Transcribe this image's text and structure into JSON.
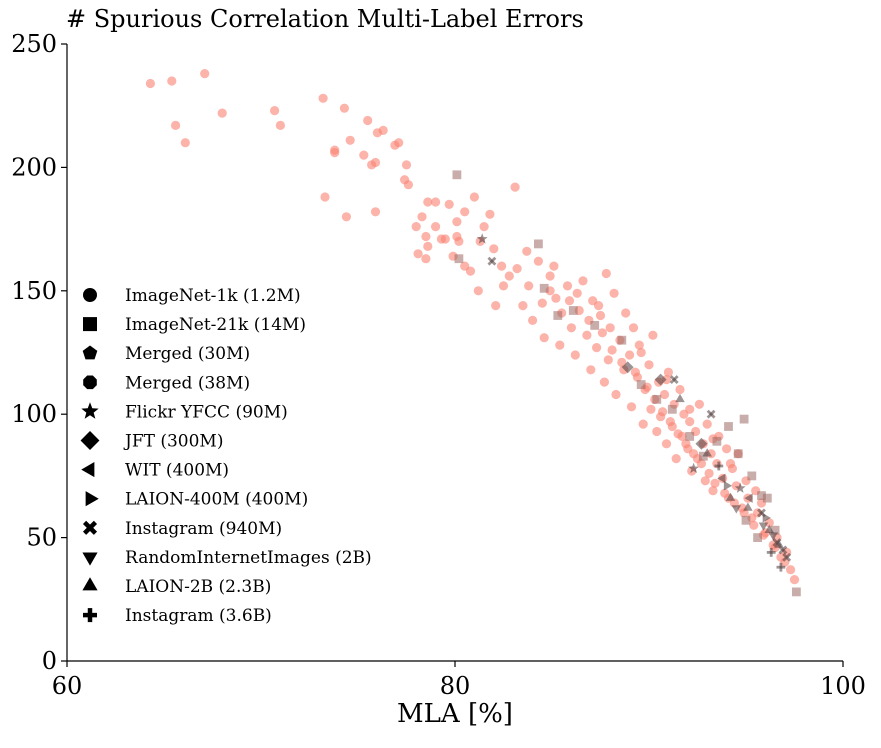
{
  "chart_data": {
    "type": "scatter",
    "title": "# Spurious Correlation Multi-Label Errors",
    "xlabel": "MLA [%]",
    "ylabel": "",
    "xlim": [
      60,
      100
    ],
    "ylim": [
      0,
      250
    ],
    "xticks": [
      "60",
      "80",
      "100"
    ],
    "yticks": [
      "0",
      "50",
      "100",
      "150",
      "200",
      "250"
    ],
    "grid": false,
    "legend_position": "left",
    "colors": {
      "primary": "#fa8072",
      "secondary": "#4d3b3b",
      "legend_marker": "#000000"
    },
    "legend": [
      {
        "label": "ImageNet-1k (1.2M)",
        "marker": "circle"
      },
      {
        "label": "ImageNet-21k (14M)",
        "marker": "square"
      },
      {
        "label": "Merged (30M)",
        "marker": "pentagon"
      },
      {
        "label": "Merged (38M)",
        "marker": "octagon"
      },
      {
        "label": "Flickr YFCC (90M)",
        "marker": "star"
      },
      {
        "label": "JFT (300M)",
        "marker": "diamond"
      },
      {
        "label": "WIT (400M)",
        "marker": "triangle-left"
      },
      {
        "label": "LAION-400M (400M)",
        "marker": "triangle-right"
      },
      {
        "label": "Instagram (940M)",
        "marker": "x-filled"
      },
      {
        "label": "RandomInternetImages (2B)",
        "marker": "triangle-down"
      },
      {
        "label": "LAION-2B (2.3B)",
        "marker": "triangle-up"
      },
      {
        "label": "Instagram (3.6B)",
        "marker": "plus-filled"
      }
    ],
    "series": [
      {
        "marker": "circle",
        "color": "#fa8072",
        "points": [
          [
            64.3,
            234
          ],
          [
            65.4,
            235
          ],
          [
            65.6,
            217
          ],
          [
            66.1,
            210
          ],
          [
            67.1,
            238
          ],
          [
            68.0,
            222
          ],
          [
            70.7,
            223
          ],
          [
            71.0,
            217
          ],
          [
            73.2,
            228
          ],
          [
            73.3,
            188
          ],
          [
            73.8,
            206
          ],
          [
            73.8,
            207
          ],
          [
            74.3,
            224
          ],
          [
            74.4,
            180
          ],
          [
            74.6,
            211
          ],
          [
            75.3,
            205
          ],
          [
            75.5,
            219
          ],
          [
            75.7,
            201
          ],
          [
            75.9,
            182
          ],
          [
            75.9,
            202
          ],
          [
            76.0,
            214
          ],
          [
            76.3,
            215
          ],
          [
            76.9,
            209
          ],
          [
            77.1,
            210
          ],
          [
            77.4,
            195
          ],
          [
            77.5,
            201
          ],
          [
            77.6,
            193
          ],
          [
            78.0,
            176
          ],
          [
            78.1,
            165
          ],
          [
            78.3,
            180
          ],
          [
            78.5,
            172
          ],
          [
            78.5,
            163
          ],
          [
            78.6,
            186
          ],
          [
            78.6,
            168
          ],
          [
            79.0,
            176
          ],
          [
            79.0,
            186
          ],
          [
            79.3,
            171
          ],
          [
            79.5,
            171
          ],
          [
            79.7,
            185
          ],
          [
            79.9,
            164
          ],
          [
            80.1,
            178
          ],
          [
            80.1,
            172
          ],
          [
            80.2,
            170
          ],
          [
            80.5,
            182
          ],
          [
            80.5,
            160
          ],
          [
            80.8,
            158
          ],
          [
            81.0,
            188
          ],
          [
            81.2,
            150
          ],
          [
            81.3,
            170
          ],
          [
            81.5,
            176
          ],
          [
            81.8,
            181
          ],
          [
            82.0,
            167
          ],
          [
            82.1,
            144
          ],
          [
            82.4,
            160
          ],
          [
            82.5,
            152
          ],
          [
            82.8,
            156
          ],
          [
            83.1,
            192
          ],
          [
            83.2,
            159
          ],
          [
            83.5,
            144
          ],
          [
            83.7,
            166
          ],
          [
            83.8,
            152
          ],
          [
            84.0,
            138
          ],
          [
            84.3,
            162
          ],
          [
            84.5,
            145
          ],
          [
            84.6,
            131
          ],
          [
            84.9,
            150
          ],
          [
            85.1,
            160
          ],
          [
            85.4,
            128
          ],
          [
            85.5,
            141
          ],
          [
            85.8,
            152
          ],
          [
            86.0,
            135
          ],
          [
            86.2,
            124
          ],
          [
            86.4,
            142
          ],
          [
            86.6,
            154
          ],
          [
            86.8,
            132
          ],
          [
            87.0,
            118
          ],
          [
            87.1,
            146
          ],
          [
            87.3,
            127
          ],
          [
            87.5,
            140
          ],
          [
            87.7,
            113
          ],
          [
            87.8,
            157
          ],
          [
            87.9,
            122
          ],
          [
            88.0,
            135
          ],
          [
            88.2,
            149
          ],
          [
            88.3,
            108
          ],
          [
            88.5,
            130
          ],
          [
            88.7,
            118
          ],
          [
            88.8,
            141
          ],
          [
            89.0,
            124
          ],
          [
            89.1,
            103
          ],
          [
            89.2,
            135
          ],
          [
            89.4,
            115
          ],
          [
            89.5,
            128
          ],
          [
            89.7,
            96
          ],
          [
            89.8,
            110
          ],
          [
            90.0,
            120
          ],
          [
            90.1,
            102
          ],
          [
            90.2,
            132
          ],
          [
            90.4,
            93
          ],
          [
            90.5,
            113
          ],
          [
            90.6,
            99
          ],
          [
            90.8,
            108
          ],
          [
            90.9,
            88
          ],
          [
            91.0,
            117
          ],
          [
            91.2,
            95
          ],
          [
            91.3,
            104
          ],
          [
            91.4,
            82
          ],
          [
            91.6,
            110
          ],
          [
            91.7,
            91
          ],
          [
            91.8,
            100
          ],
          [
            92.0,
            86
          ],
          [
            92.1,
            97
          ],
          [
            92.2,
            77
          ],
          [
            92.4,
            93
          ],
          [
            92.5,
            82
          ],
          [
            92.6,
            104
          ],
          [
            92.8,
            88
          ],
          [
            92.9,
            73
          ],
          [
            93.0,
            96
          ],
          [
            93.2,
            84
          ],
          [
            93.3,
            69
          ],
          [
            93.5,
            80
          ],
          [
            93.6,
            91
          ],
          [
            93.8,
            74
          ],
          [
            94.0,
            86
          ],
          [
            94.1,
            66
          ],
          [
            94.3,
            78
          ],
          [
            94.5,
            71
          ],
          [
            94.6,
            84
          ],
          [
            94.8,
            62
          ],
          [
            95.0,
            73
          ],
          [
            95.1,
            66
          ],
          [
            95.3,
            58
          ],
          [
            95.5,
            69
          ],
          [
            95.6,
            60
          ],
          [
            95.8,
            64
          ],
          [
            96.0,
            52
          ],
          [
            96.2,
            56
          ],
          [
            96.4,
            47
          ],
          [
            96.6,
            50
          ],
          [
            96.8,
            42
          ],
          [
            97.1,
            44
          ],
          [
            97.3,
            37
          ],
          [
            97.5,
            33
          ],
          [
            85.9,
            146
          ],
          [
            86.9,
            138
          ],
          [
            87.6,
            133
          ],
          [
            88.1,
            126
          ],
          [
            88.6,
            121
          ],
          [
            89.3,
            117
          ],
          [
            89.9,
            111
          ],
          [
            90.3,
            106
          ],
          [
            90.7,
            101
          ],
          [
            91.1,
            97
          ],
          [
            91.5,
            92
          ],
          [
            91.9,
            88
          ],
          [
            92.3,
            84
          ],
          [
            92.7,
            80
          ],
          [
            93.1,
            76
          ],
          [
            93.4,
            72
          ],
          [
            93.9,
            68
          ],
          [
            94.4,
            64
          ],
          [
            94.9,
            60
          ],
          [
            95.4,
            55
          ],
          [
            95.9,
            51
          ],
          [
            96.5,
            46
          ],
          [
            97.0,
            40
          ],
          [
            89.6,
            125
          ],
          [
            90.9,
            114
          ],
          [
            92.1,
            102
          ],
          [
            93.3,
            90
          ],
          [
            94.2,
            80
          ],
          [
            86.3,
            149
          ],
          [
            87.4,
            144
          ],
          [
            84.9,
            156
          ],
          [
            85.2,
            147
          ]
        ]
      },
      {
        "marker": "square",
        "color": "#9c6a64",
        "points": [
          [
            80.1,
            197
          ],
          [
            80.2,
            163
          ],
          [
            84.3,
            169
          ],
          [
            84.6,
            151
          ],
          [
            85.3,
            140
          ],
          [
            86.1,
            142
          ],
          [
            87.2,
            136
          ],
          [
            88.6,
            130
          ],
          [
            89.6,
            112
          ],
          [
            90.4,
            106
          ],
          [
            91.2,
            102
          ],
          [
            92.1,
            91
          ],
          [
            92.8,
            83
          ],
          [
            93.5,
            89
          ],
          [
            94.1,
            95
          ],
          [
            94.6,
            84
          ],
          [
            95.3,
            75
          ],
          [
            95.8,
            67
          ],
          [
            96.1,
            66
          ],
          [
            95.0,
            57
          ],
          [
            95.6,
            50
          ],
          [
            96.5,
            53
          ],
          [
            97.6,
            28
          ],
          [
            94.9,
            98
          ]
        ]
      },
      {
        "marker": "x-filled",
        "color": "#4d3b3b",
        "points": [
          [
            81.9,
            162
          ],
          [
            91.3,
            114
          ],
          [
            93.2,
            100
          ],
          [
            95.8,
            60
          ],
          [
            96.6,
            48
          ],
          [
            96.9,
            45
          ],
          [
            97.1,
            42
          ]
        ]
      },
      {
        "marker": "star",
        "color": "#4d3b3b",
        "points": [
          [
            81.4,
            171
          ],
          [
            92.3,
            78
          ],
          [
            94.7,
            70
          ]
        ]
      },
      {
        "marker": "diamond",
        "color": "#4d3b3b",
        "points": [
          [
            88.9,
            119
          ],
          [
            90.6,
            114
          ],
          [
            92.7,
            88
          ]
        ]
      },
      {
        "marker": "triangle-up",
        "color": "#4d3b3b",
        "points": [
          [
            91.6,
            106
          ],
          [
            93.0,
            84
          ],
          [
            94.2,
            66
          ],
          [
            95.1,
            62
          ],
          [
            96.2,
            53
          ],
          [
            96.7,
            47
          ]
        ]
      },
      {
        "marker": "triangle-down",
        "color": "#4d3b3b",
        "points": [
          [
            94.5,
            62
          ],
          [
            95.9,
            55
          ],
          [
            96.4,
            51
          ]
        ]
      },
      {
        "marker": "triangle-left",
        "color": "#4d3b3b",
        "points": [
          [
            93.8,
            74
          ],
          [
            95.2,
            66
          ]
        ]
      },
      {
        "marker": "triangle-right",
        "color": "#4d3b3b",
        "points": [
          [
            94.0,
            71
          ],
          [
            96.0,
            58
          ]
        ]
      },
      {
        "marker": "plus-filled",
        "color": "#4d3b3b",
        "points": [
          [
            93.6,
            79
          ],
          [
            96.8,
            38
          ],
          [
            96.3,
            44
          ]
        ]
      }
    ]
  }
}
